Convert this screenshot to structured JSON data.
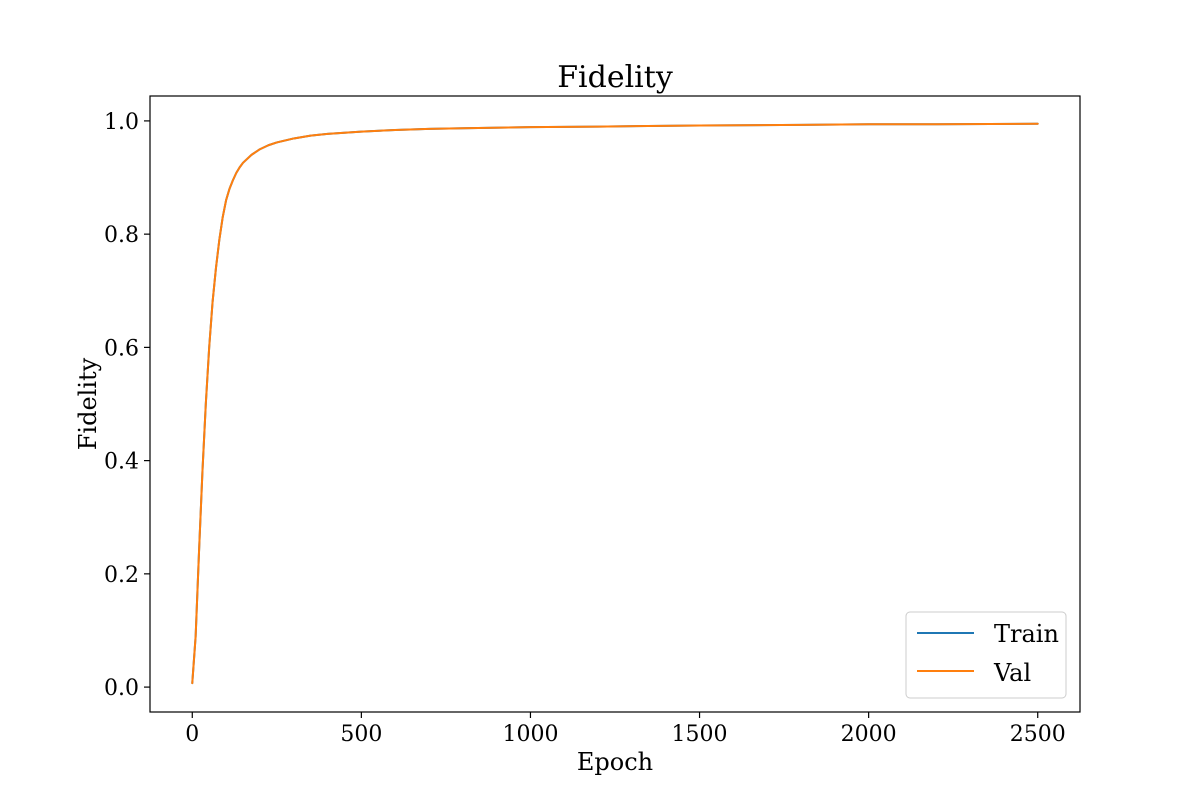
{
  "chart_data": {
    "type": "line",
    "title": "Fidelity",
    "xlabel": "Epoch",
    "ylabel": "Fidelity",
    "xlim": [
      -125,
      2625
    ],
    "ylim": [
      -0.044,
      1.044
    ],
    "x_ticks": [
      0,
      500,
      1000,
      1500,
      2000,
      2500
    ],
    "y_ticks": [
      0.0,
      0.2,
      0.4,
      0.6,
      0.8,
      1.0
    ],
    "x_tick_labels": [
      "0",
      "500",
      "1000",
      "1500",
      "2000",
      "2500"
    ],
    "y_tick_labels": [
      "0.0",
      "0.2",
      "0.4",
      "0.6",
      "0.8",
      "1.0"
    ],
    "grid": false,
    "legend_position": "lower-right",
    "x": [
      0,
      10,
      20,
      30,
      40,
      50,
      60,
      70,
      80,
      90,
      100,
      110,
      120,
      130,
      140,
      150,
      175,
      200,
      225,
      250,
      300,
      350,
      400,
      500,
      600,
      700,
      800,
      1000,
      1200,
      1500,
      1800,
      2000,
      2200,
      2500
    ],
    "series": [
      {
        "name": "Train",
        "color": "#1f77b4",
        "values": [
          0.007,
          0.09,
          0.24,
          0.38,
          0.5,
          0.6,
          0.68,
          0.74,
          0.79,
          0.83,
          0.86,
          0.88,
          0.895,
          0.908,
          0.918,
          0.926,
          0.94,
          0.95,
          0.957,
          0.962,
          0.969,
          0.974,
          0.977,
          0.981,
          0.984,
          0.986,
          0.987,
          0.989,
          0.99,
          0.992,
          0.993,
          0.994,
          0.994,
          0.995
        ]
      },
      {
        "name": "Val",
        "color": "#ff7f0e",
        "values": [
          0.007,
          0.09,
          0.24,
          0.38,
          0.5,
          0.6,
          0.68,
          0.74,
          0.79,
          0.83,
          0.86,
          0.88,
          0.895,
          0.908,
          0.918,
          0.926,
          0.94,
          0.95,
          0.957,
          0.962,
          0.969,
          0.974,
          0.977,
          0.981,
          0.984,
          0.986,
          0.987,
          0.989,
          0.99,
          0.992,
          0.993,
          0.994,
          0.994,
          0.995
        ]
      }
    ]
  }
}
